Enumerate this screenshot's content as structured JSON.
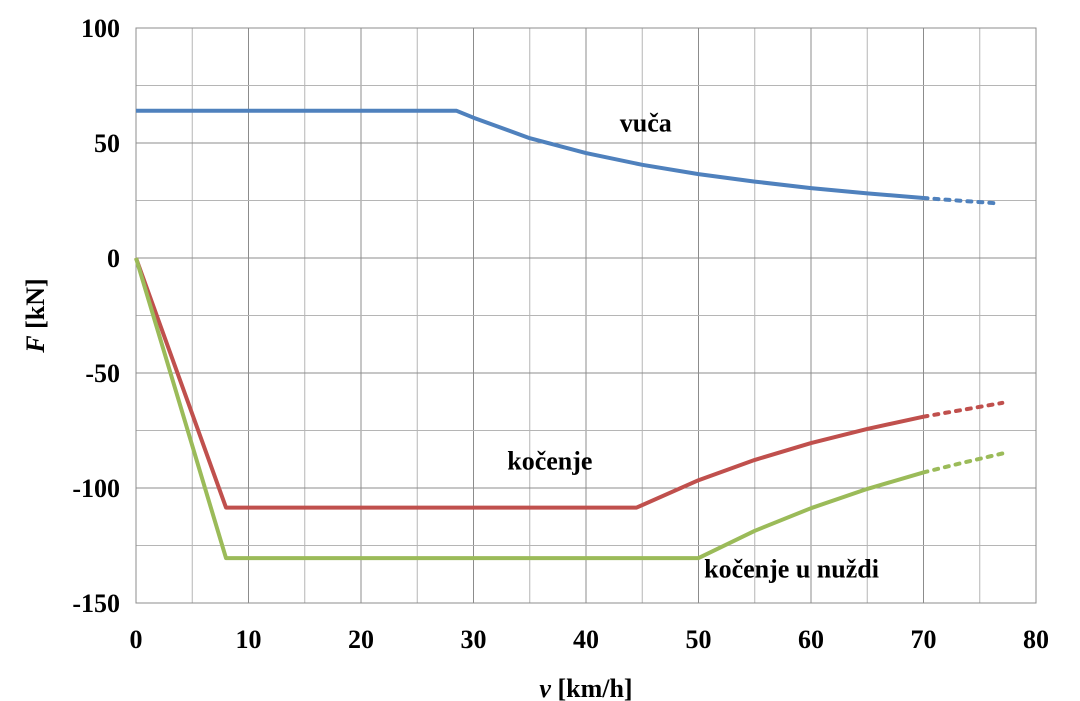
{
  "chart_data": {
    "type": "line",
    "xlabel": {
      "symbol": "v",
      "unit": "[km/h]"
    },
    "ylabel": {
      "symbol": "F",
      "unit": "[kN]"
    },
    "xlim": [
      0,
      80
    ],
    "ylim": [
      -150,
      100
    ],
    "x_ticks": [
      0,
      10,
      20,
      30,
      40,
      50,
      60,
      70,
      80
    ],
    "y_ticks": [
      -150,
      -100,
      -50,
      0,
      50,
      100
    ],
    "x_tick_labels": [
      "0",
      "10",
      "20",
      "30",
      "40",
      "50",
      "60",
      "70",
      "80"
    ],
    "y_tick_labels": [
      "-150",
      "-100",
      "-50",
      "0",
      "50",
      "100"
    ],
    "x_minor_grid_step": 5,
    "y_minor_grid_step": 25,
    "grid": true,
    "series": [
      {
        "name": "vuča",
        "color": "#4F81BD",
        "points": [
          [
            0,
            64
          ],
          [
            28.5,
            64
          ],
          [
            30,
            61
          ],
          [
            35,
            52.1
          ],
          [
            40,
            45.6
          ],
          [
            45,
            40.5
          ],
          [
            50,
            36.5
          ],
          [
            55,
            33.2
          ],
          [
            60,
            30.4
          ],
          [
            65,
            28.1
          ],
          [
            70,
            26.1
          ]
        ],
        "extrapolated": [
          [
            70,
            26.1
          ],
          [
            73,
            25
          ],
          [
            76.5,
            23.8
          ]
        ]
      },
      {
        "name": "kočenje",
        "color": "#C0504D",
        "points": [
          [
            0,
            0
          ],
          [
            8,
            -108.5
          ],
          [
            44.5,
            -108.5
          ],
          [
            50,
            -96.6
          ],
          [
            55,
            -87.8
          ],
          [
            60,
            -80.5
          ],
          [
            65,
            -74.3
          ],
          [
            70,
            -69
          ]
        ],
        "extrapolated": [
          [
            70,
            -69
          ],
          [
            73.5,
            -66
          ],
          [
            77,
            -63
          ]
        ]
      },
      {
        "name": "kočenje u nuždi",
        "color": "#9BBB59",
        "points": [
          [
            0,
            0
          ],
          [
            8,
            -130.5
          ],
          [
            50,
            -130.5
          ],
          [
            55,
            -118.6
          ],
          [
            60,
            -108.8
          ],
          [
            65,
            -100.4
          ],
          [
            70,
            -93.2
          ]
        ],
        "extrapolated": [
          [
            70,
            -93.2
          ],
          [
            73.5,
            -89
          ],
          [
            77,
            -85
          ]
        ]
      }
    ],
    "annotations": [
      {
        "text": "vuča",
        "x": 43,
        "y": 55
      },
      {
        "text": "kočenje",
        "x": 33,
        "y": -92
      },
      {
        "text": "kočenje u nuždi",
        "x": 50.5,
        "y": -139
      }
    ]
  }
}
